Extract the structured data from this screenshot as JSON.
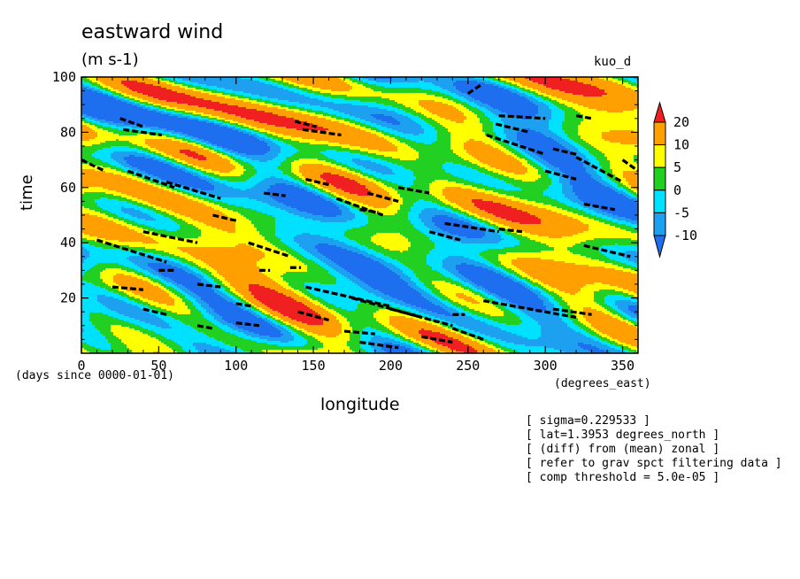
{
  "chart_data": {
    "type": "heatmap",
    "title": "eastward wind",
    "units": "(m s-1)",
    "run_label": "kuo_d",
    "xlabel": "longitude",
    "x_units": "(degrees_east)",
    "ylabel": "time",
    "y_units": "(days since 0000-01-01)",
    "xlim": [
      0,
      360
    ],
    "ylim": [
      0,
      100
    ],
    "x_ticks": [
      0,
      50,
      100,
      150,
      200,
      250,
      300,
      350
    ],
    "y_ticks": [
      20,
      40,
      60,
      80,
      100
    ],
    "colorbar": {
      "levels": [
        -10,
        -5,
        0,
        5,
        10,
        20
      ],
      "colors": [
        "#1e6ef0",
        "#1ea0f0",
        "#00e0ff",
        "#22d022",
        "#ffff00",
        "#ffa000",
        "#f02020"
      ]
    },
    "annotations": [
      "[ sigma=0.229533 ]",
      "[ lat=1.3953 degrees_north ]",
      "[ (diff) from (mean) zonal ]",
      "[ refer to grav spct filtering data ]",
      "[ comp threshold = 5.0e-05 ]"
    ]
  }
}
